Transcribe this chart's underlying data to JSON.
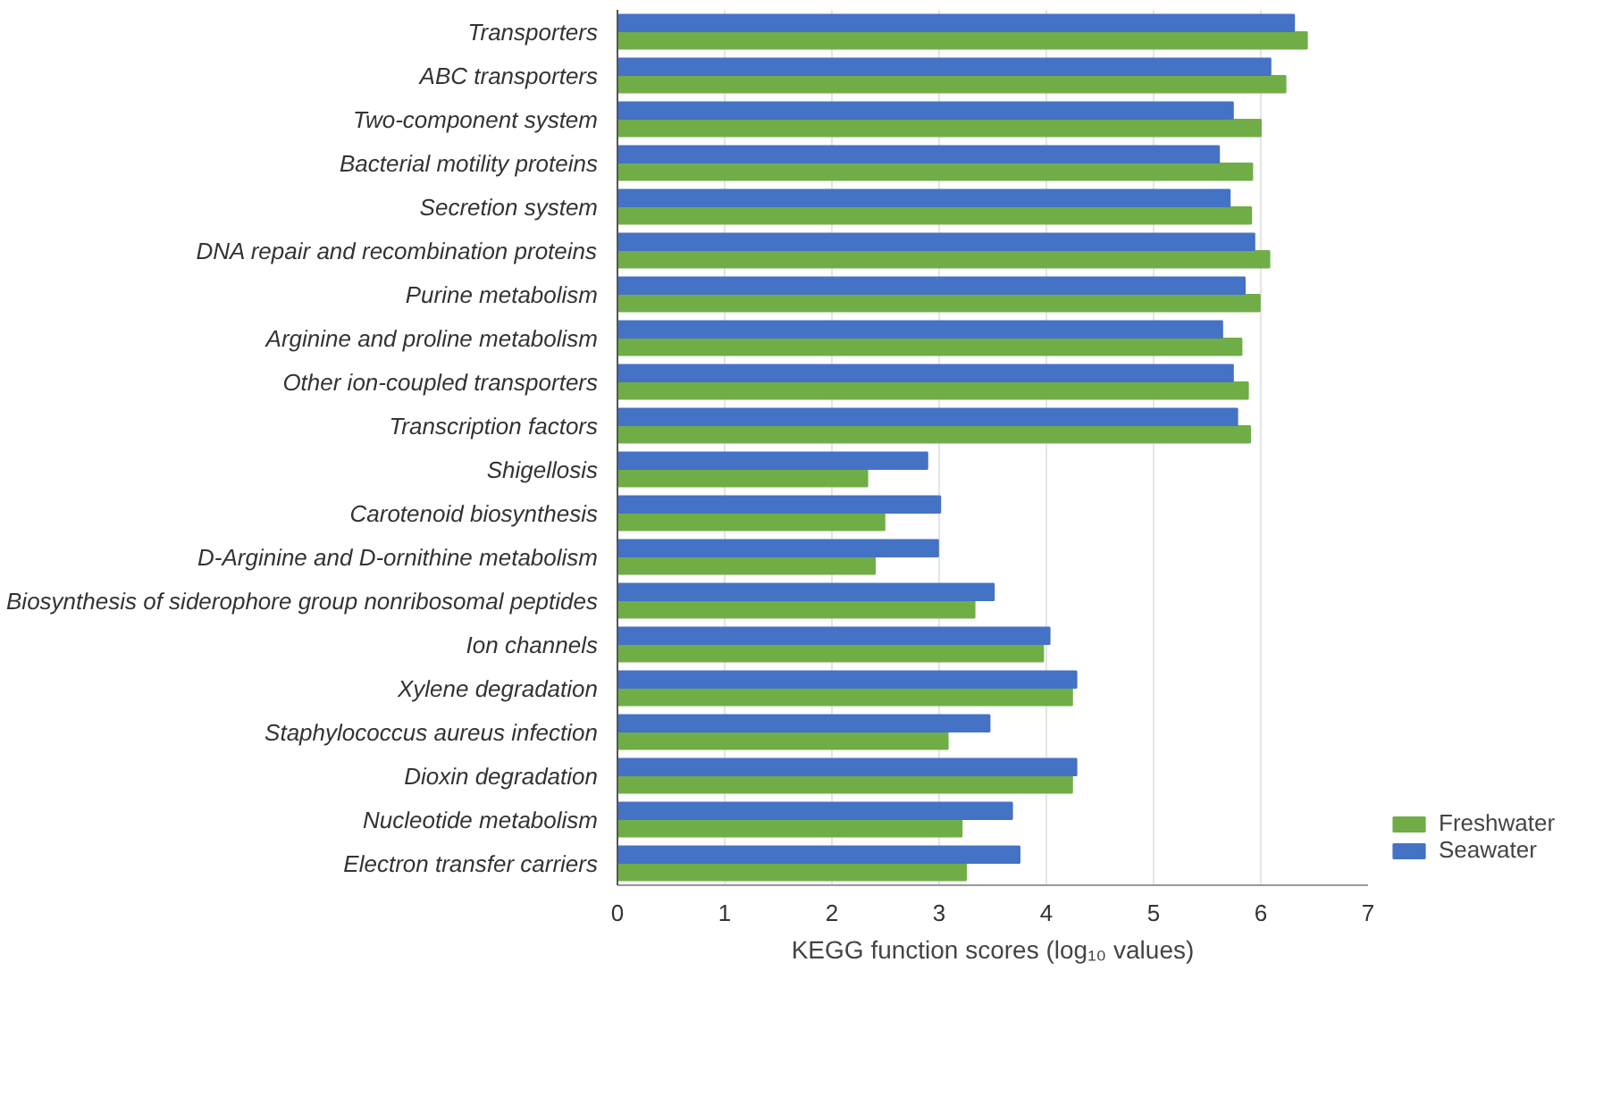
{
  "chart_data": {
    "type": "bar",
    "orientation": "horizontal",
    "xlabel": "KEGG function scores (log₁₀ values)",
    "categories": [
      "Transporters",
      "ABC transporters",
      "Two-component system",
      "Bacterial motility proteins",
      "Secretion system",
      "DNA repair and recombination proteins",
      "Purine metabolism",
      "Arginine and proline metabolism",
      "Other ion-coupled transporters",
      "Transcription factors",
      "Shigellosis",
      "Carotenoid biosynthesis",
      "D-Arginine and D-ornithine metabolism",
      "Biosynthesis of siderophore group nonribosomal peptides",
      "Ion channels",
      "Xylene degradation",
      "Staphylococcus aureus infection",
      "Dioxin degradation",
      "Nucleotide metabolism",
      "Electron transfer carriers"
    ],
    "series": [
      {
        "name": "Freshwater",
        "color": "#70ad47",
        "values": [
          6.43,
          6.23,
          6.0,
          5.92,
          5.91,
          6.08,
          5.99,
          5.82,
          5.88,
          5.9,
          2.33,
          2.49,
          2.4,
          3.33,
          3.97,
          4.24,
          3.08,
          4.24,
          3.21,
          3.25
        ]
      },
      {
        "name": "Seawater",
        "color": "#4472c4",
        "values": [
          6.31,
          6.09,
          5.74,
          5.61,
          5.71,
          5.94,
          5.85,
          5.64,
          5.74,
          5.78,
          2.89,
          3.01,
          2.99,
          3.51,
          4.03,
          4.28,
          3.47,
          4.28,
          3.68,
          3.75
        ]
      }
    ],
    "xlim": [
      0,
      7
    ],
    "xticks": [
      0,
      1,
      2,
      3,
      4,
      5,
      6,
      7
    ],
    "grid": "x",
    "legend": "bottom right"
  }
}
